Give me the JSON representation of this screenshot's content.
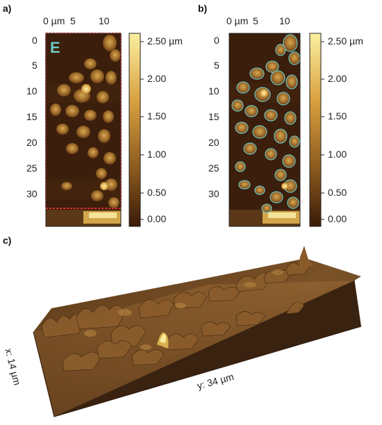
{
  "panel_a": {
    "label": "a)",
    "x_ticks": [
      "0 µm",
      "5",
      "10"
    ],
    "y_ticks": [
      "0",
      "5",
      "10",
      "15",
      "20",
      "25",
      "30"
    ],
    "region_label": "E",
    "region_color": "#e03030"
  },
  "panel_b": {
    "label": "b)",
    "x_ticks": [
      "0 µm",
      "5",
      "10"
    ],
    "y_ticks": [
      "0",
      "5",
      "10",
      "15",
      "20",
      "25",
      "30"
    ],
    "outline_color": "#6ec9c4"
  },
  "colorbar": {
    "ticks": [
      "2.50 µm",
      "2.00",
      "1.50",
      "1.00",
      "0.50",
      "0.00"
    ],
    "ticks_b": [
      "2.50 µm",
      "2.00",
      "1.50",
      "1.00",
      "0.50",
      "0.00"
    ],
    "colors": [
      "#fbf0a0",
      "#d9a040",
      "#8b5a1e",
      "#3a1a08"
    ]
  },
  "panel_c": {
    "label": "c)",
    "x_axis_label": "x: 14 µm",
    "y_axis_label": "y: 34 µm"
  }
}
